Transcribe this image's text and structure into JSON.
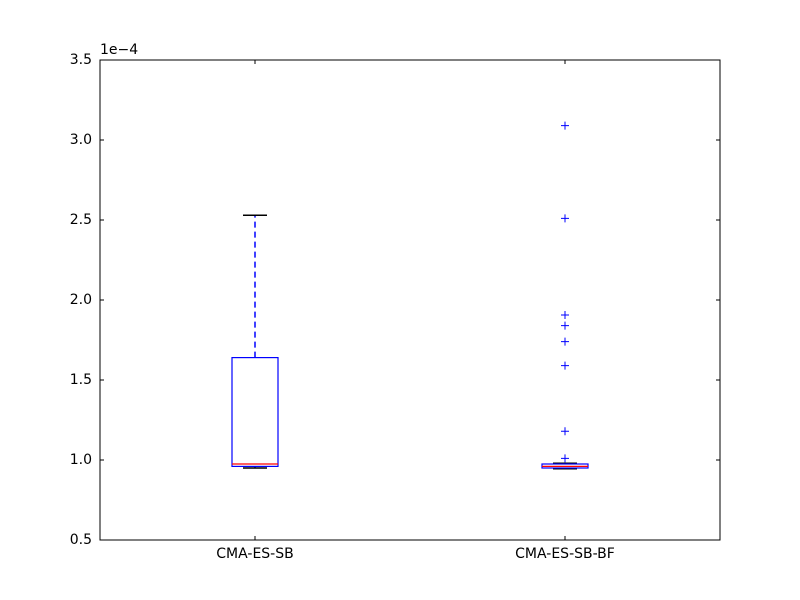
{
  "chart_data": {
    "type": "box",
    "offset_label": "1e−4",
    "categories": [
      "CMA-ES-SB",
      "CMA-ES-SB-BF"
    ],
    "boxes": [
      {
        "whislo": 0.95,
        "q1": 0.96,
        "med": 0.975,
        "q3": 1.64,
        "whishi": 2.53,
        "fliers": []
      },
      {
        "whislo": 0.945,
        "q1": 0.95,
        "med": 0.96,
        "q3": 0.975,
        "whishi": 0.98,
        "fliers": [
          3.09,
          2.51,
          1.906,
          1.84,
          1.74,
          1.59,
          1.18,
          1.01
        ]
      }
    ],
    "box_color": "#0000ff",
    "median_color": "#ff0000",
    "cap_color": "#000000",
    "flier_color": "#0000ff",
    "ylim": [
      0.5,
      3.5
    ],
    "yticks": [
      0.5,
      {
        "value": 1.0,
        "label": "1.0"
      },
      1.5,
      {
        "value": 2.0,
        "label": "2.0"
      },
      2.5,
      {
        "value": 3.0,
        "label": "3.0"
      },
      3.5
    ],
    "grid": false
  }
}
